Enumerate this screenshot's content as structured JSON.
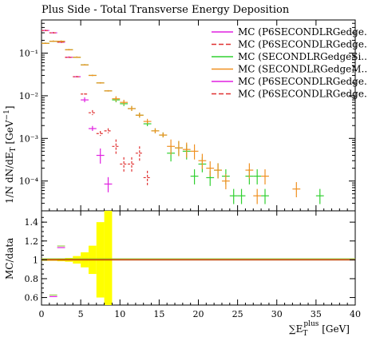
{
  "chart_data": {
    "title": "Plus Side - Total Transverse Energy Deposition",
    "main": {
      "type": "scatter",
      "ylabel": "1/N dN/dE_T [GeV^-1]",
      "yscale": "log",
      "xlim": [
        0,
        40
      ],
      "ylim": [
        2e-05,
        0.6
      ],
      "ytick_labels": [
        "10⁻¹",
        "10⁻²",
        "10⁻³",
        "10⁻⁴"
      ],
      "ytick_values": [
        0.1,
        0.01,
        0.001,
        0.0001
      ],
      "legend_position": "top-right",
      "series": [
        {
          "name": "MC (P6SECONDLRGedge...",
          "color": "#e020e0",
          "style": "solid",
          "points": [
            [
              0.5,
              0.34
            ],
            [
              1.5,
              0.3
            ],
            [
              2.5,
              0.18
            ],
            [
              3.5,
              0.08
            ],
            [
              4.5,
              0.028
            ],
            [
              5.5,
              0.008
            ],
            [
              6.5,
              0.0017
            ],
            [
              7.5,
              0.0004
            ],
            [
              8.5,
              8.5e-05
            ]
          ]
        },
        {
          "name": "MC (P6SECONDLRGedge...",
          "color": "#e03030",
          "style": "dashed",
          "points": [
            [
              0.5,
              0.34
            ],
            [
              1.5,
              0.3
            ],
            [
              2.5,
              0.18
            ],
            [
              3.5,
              0.08
            ],
            [
              4.5,
              0.028
            ],
            [
              5.5,
              0.011
            ],
            [
              6.5,
              0.004
            ],
            [
              7.5,
              0.0013
            ],
            [
              8.5,
              0.0015
            ],
            [
              9.5,
              0.00065
            ],
            [
              10.5,
              0.00025
            ],
            [
              11.5,
              0.00025
            ],
            [
              12.5,
              0.00045
            ],
            [
              13.5,
              0.00012
            ]
          ]
        },
        {
          "name": "MC (SECONDLRGedgeSi...",
          "color": "#30d030",
          "style": "solid",
          "points": [
            [
              0.5,
              0.17
            ],
            [
              1.5,
              0.19
            ],
            [
              2.5,
              0.19
            ],
            [
              3.5,
              0.12
            ],
            [
              4.5,
              0.08
            ],
            [
              5.5,
              0.053
            ],
            [
              6.5,
              0.03
            ],
            [
              7.5,
              0.02
            ],
            [
              8.5,
              0.013
            ],
            [
              9.5,
              0.008
            ],
            [
              10.5,
              0.0065
            ],
            [
              11.5,
              0.005
            ],
            [
              12.5,
              0.0035
            ],
            [
              13.5,
              0.0022
            ],
            [
              14.5,
              0.0015
            ],
            [
              15.5,
              0.0012
            ],
            [
              16.5,
              0.00045
            ],
            [
              17.5,
              0.0006
            ],
            [
              18.5,
              0.0005
            ],
            [
              19.5,
              0.00013
            ],
            [
              20.5,
              0.00025
            ],
            [
              21.5,
              0.00012
            ],
            [
              22.5,
              0.00018
            ],
            [
              23.5,
              0.00013
            ],
            [
              24.5,
              4.5e-05
            ],
            [
              25.5,
              4.5e-05
            ],
            [
              26.5,
              0.00013
            ],
            [
              27.5,
              0.00013
            ],
            [
              28.5,
              4.5e-05
            ],
            [
              35.5,
              4.5e-05
            ]
          ]
        },
        {
          "name": "MC (SECONDLRGedgeM...",
          "color": "#f09020",
          "style": "solid",
          "points": [
            [
              0.5,
              0.17
            ],
            [
              1.5,
              0.19
            ],
            [
              2.5,
              0.19
            ],
            [
              3.5,
              0.12
            ],
            [
              4.5,
              0.08
            ],
            [
              5.5,
              0.053
            ],
            [
              6.5,
              0.03
            ],
            [
              7.5,
              0.02
            ],
            [
              8.5,
              0.013
            ],
            [
              9.5,
              0.0085
            ],
            [
              10.5,
              0.007
            ],
            [
              11.5,
              0.005
            ],
            [
              12.5,
              0.0035
            ],
            [
              13.5,
              0.0025
            ],
            [
              14.5,
              0.0015
            ],
            [
              15.5,
              0.0012
            ],
            [
              16.5,
              0.00065
            ],
            [
              17.5,
              0.0006
            ],
            [
              18.5,
              0.00055
            ],
            [
              19.5,
              0.0005
            ],
            [
              20.5,
              0.0003
            ],
            [
              21.5,
              0.0002
            ],
            [
              22.5,
              0.00018
            ],
            [
              23.5,
              0.0001
            ],
            [
              26.5,
              0.00018
            ],
            [
              27.5,
              4.5e-05
            ],
            [
              28.5,
              0.00013
            ],
            [
              32.5,
              6.5e-05
            ]
          ]
        },
        {
          "name": "MC (P6SECONDLRGedge...",
          "color": "#e020e0",
          "style": "solid",
          "points": []
        },
        {
          "name": "MC (P6SECONDLRGedge...",
          "color": "#e03030",
          "style": "dashed",
          "points": []
        }
      ]
    },
    "ratio": {
      "type": "area",
      "ylabel": "MC/data",
      "xlabel": "∑E_T^plus [GeV]",
      "xlim": [
        0,
        40
      ],
      "ylim": [
        0.52,
        1.52
      ],
      "xtick_labels": [
        "0",
        "5",
        "10",
        "15",
        "20",
        "25",
        "30",
        "35",
        "40"
      ],
      "xtick_values": [
        0,
        5,
        10,
        15,
        20,
        25,
        30,
        35,
        40
      ],
      "ytick_labels": [
        "0.6",
        "0.8",
        "1",
        "1.2",
        "1.4"
      ],
      "ytick_values": [
        0.6,
        0.8,
        1.0,
        1.2,
        1.4
      ],
      "band_color": "#ffff00",
      "band": [
        [
          0,
          1,
          0.99,
          1.01
        ],
        [
          1,
          2,
          0.99,
          1.01
        ],
        [
          2,
          3,
          0.985,
          1.015
        ],
        [
          3,
          4,
          0.98,
          1.02
        ],
        [
          4,
          5,
          0.96,
          1.04
        ],
        [
          5,
          6,
          0.92,
          1.08
        ],
        [
          6,
          7,
          0.85,
          1.15
        ],
        [
          7,
          8,
          0.6,
          1.4
        ],
        [
          8,
          9,
          0.5,
          1.55
        ]
      ],
      "ratio_points": [
        {
          "x": 1.5,
          "y": 0.61,
          "color": "#e020e0"
        },
        {
          "x": 2.5,
          "y": 1.13,
          "color": "#e020e0"
        }
      ],
      "unity_color": "#c04000"
    }
  }
}
